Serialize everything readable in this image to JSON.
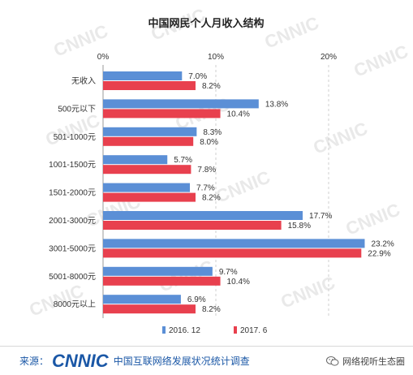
{
  "chart_data": {
    "type": "bar",
    "orientation": "horizontal",
    "title": "中国网民个人月收入结构",
    "xlabel": "",
    "ylabel": "",
    "xlim": [
      0,
      25
    ],
    "xticks": [
      "0%",
      "10%",
      "20%"
    ],
    "grid": true,
    "legend_position": "bottom",
    "categories": [
      "无收入",
      "500元以下",
      "501-1000元",
      "1001-1500元",
      "1501-2000元",
      "2001-3000元",
      "3001-5000元",
      "5001-8000元",
      "8000元以上"
    ],
    "series": [
      {
        "name": "2016. 12",
        "color": "#5b8fd6",
        "values": [
          7.0,
          13.8,
          8.3,
          5.7,
          7.7,
          17.7,
          23.2,
          9.7,
          6.9
        ],
        "labels": [
          "7.0%",
          "13.8%",
          "8.3%",
          "5.7%",
          "7.7%",
          "17.7%",
          "23.2%",
          "9.7%",
          "6.9%"
        ]
      },
      {
        "name": "2017. 6",
        "color": "#e8404e",
        "values": [
          8.2,
          10.4,
          8.0,
          7.8,
          8.2,
          15.8,
          22.9,
          10.4,
          8.2
        ],
        "labels": [
          "8.2%",
          "10.4%",
          "8.0%",
          "7.8%",
          "8.2%",
          "15.8%",
          "22.9%",
          "10.4%",
          "8.2%"
        ]
      }
    ]
  },
  "watermark": "CNNIC",
  "footer": {
    "source_label": "来源：",
    "logo_text": "CNNIC",
    "org_name": "中国互联网络发展状况统计调查",
    "wechat_account": "网络视听生态圈"
  },
  "colors": {
    "brand": "#1a57a6",
    "series1": "#5b8fd6",
    "series2": "#e8404e"
  },
  "icons": {
    "wechat": "wechat-icon"
  }
}
